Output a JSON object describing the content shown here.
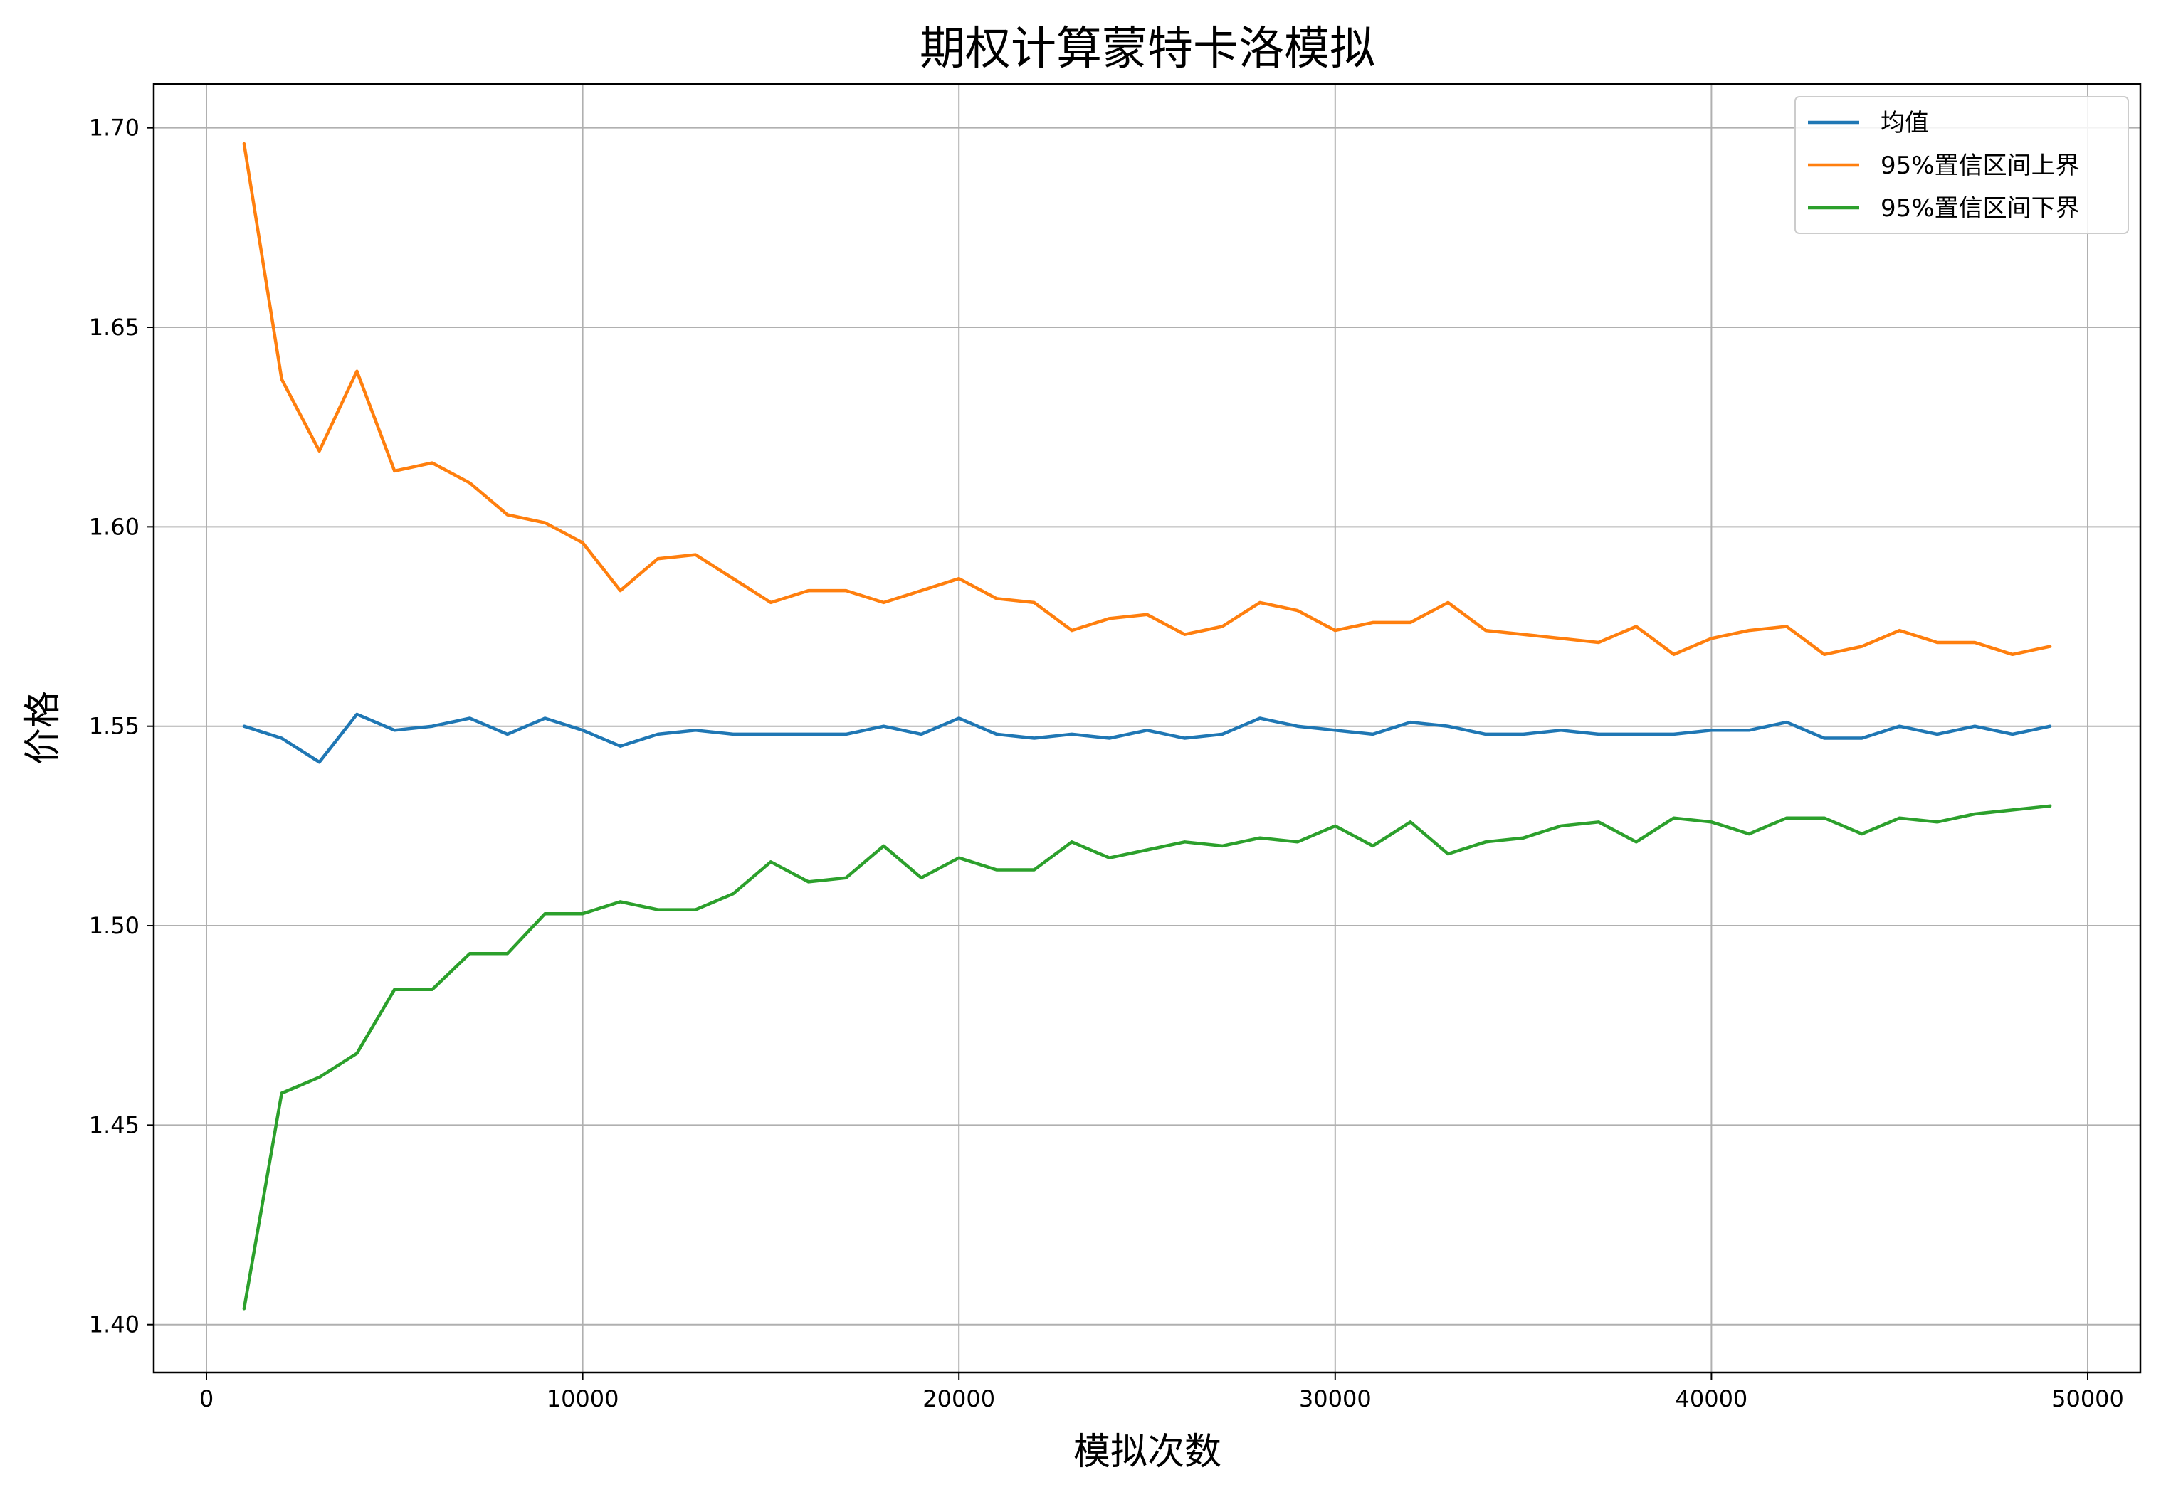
{
  "chart_data": {
    "type": "line",
    "title": "期权计算蒙特卡洛模拟",
    "xlabel": "模拟次数",
    "ylabel": "价格",
    "xlim": [
      -1400,
      51400
    ],
    "ylim": [
      1.388,
      1.711
    ],
    "xticks": [
      0,
      10000,
      20000,
      30000,
      40000,
      50000
    ],
    "yticks": [
      1.4,
      1.45,
      1.5,
      1.55,
      1.6,
      1.65,
      1.7
    ],
    "ytick_labels": [
      "1.40",
      "1.45",
      "1.50",
      "1.55",
      "1.60",
      "1.65",
      "1.70"
    ],
    "grid": true,
    "legend_position": "top-right",
    "x": [
      1000,
      2000,
      3000,
      4000,
      5000,
      6000,
      7000,
      8000,
      9000,
      10000,
      11000,
      12000,
      13000,
      14000,
      15000,
      16000,
      17000,
      18000,
      19000,
      20000,
      21000,
      22000,
      23000,
      24000,
      25000,
      26000,
      27000,
      28000,
      29000,
      30000,
      31000,
      32000,
      33000,
      34000,
      35000,
      36000,
      37000,
      38000,
      39000,
      40000,
      41000,
      42000,
      43000,
      44000,
      45000,
      46000,
      47000,
      48000,
      49000
    ],
    "series": [
      {
        "name": "均值",
        "color": "#1f77b4",
        "values": [
          1.55,
          1.547,
          1.541,
          1.553,
          1.549,
          1.55,
          1.552,
          1.548,
          1.552,
          1.549,
          1.545,
          1.548,
          1.549,
          1.548,
          1.548,
          1.548,
          1.548,
          1.55,
          1.548,
          1.552,
          1.548,
          1.547,
          1.548,
          1.547,
          1.549,
          1.547,
          1.548,
          1.552,
          1.55,
          1.549,
          1.548,
          1.551,
          1.55,
          1.548,
          1.548,
          1.549,
          1.548,
          1.548,
          1.548,
          1.549,
          1.549,
          1.551,
          1.547,
          1.547,
          1.55,
          1.548,
          1.55,
          1.548,
          1.55
        ]
      },
      {
        "name": "95%置信区间上界",
        "color": "#ff7f0e",
        "values": [
          1.696,
          1.637,
          1.619,
          1.639,
          1.614,
          1.616,
          1.611,
          1.603,
          1.601,
          1.596,
          1.584,
          1.592,
          1.593,
          1.587,
          1.581,
          1.584,
          1.584,
          1.581,
          1.584,
          1.587,
          1.582,
          1.581,
          1.574,
          1.577,
          1.578,
          1.573,
          1.575,
          1.581,
          1.579,
          1.574,
          1.576,
          1.576,
          1.581,
          1.574,
          1.573,
          1.572,
          1.571,
          1.575,
          1.568,
          1.572,
          1.574,
          1.575,
          1.568,
          1.57,
          1.574,
          1.571,
          1.571,
          1.568,
          1.57
        ]
      },
      {
        "name": "95%置信区间下界",
        "color": "#2ca02c",
        "values": [
          1.404,
          1.458,
          1.462,
          1.468,
          1.484,
          1.484,
          1.493,
          1.493,
          1.503,
          1.503,
          1.506,
          1.504,
          1.504,
          1.508,
          1.516,
          1.511,
          1.512,
          1.52,
          1.512,
          1.517,
          1.514,
          1.514,
          1.521,
          1.517,
          1.519,
          1.521,
          1.52,
          1.522,
          1.521,
          1.525,
          1.52,
          1.526,
          1.518,
          1.521,
          1.522,
          1.525,
          1.526,
          1.521,
          1.527,
          1.526,
          1.523,
          1.527,
          1.527,
          1.523,
          1.527,
          1.526,
          1.528,
          1.529,
          1.53
        ]
      }
    ]
  }
}
